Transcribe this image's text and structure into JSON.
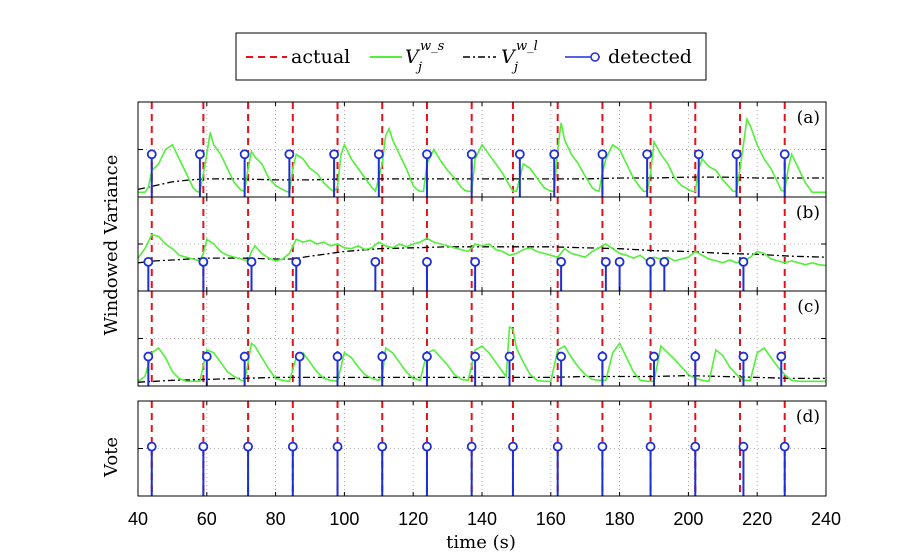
{
  "chart_data": {
    "type": "line",
    "description_title": "",
    "xlabel": "time (s)",
    "ylabel_top": "Windowed Variance",
    "ylabel_bottom": "Vote",
    "xlim": [
      40,
      240
    ],
    "xticks": [
      "40",
      "60",
      "80",
      "100",
      "120",
      "140",
      "160",
      "180",
      "200",
      "220",
      "240"
    ],
    "legend": {
      "actual": "actual",
      "short": "V",
      "short_sub": "j",
      "short_sup": "w_s",
      "long": "V",
      "long_sub": "j",
      "long_sup": "w_l",
      "detected": "detected"
    },
    "actual_times": [
      44,
      59,
      72,
      85,
      98,
      111,
      124,
      137,
      149,
      162,
      175,
      189,
      202,
      215,
      228
    ],
    "panels": [
      {
        "tag": "(a)",
        "ylim": [
          0,
          1
        ],
        "short_variance": {
          "x": [
            40,
            42,
            43,
            44,
            46,
            48,
            50,
            52,
            54,
            56,
            57,
            58,
            59,
            60,
            61,
            62,
            64,
            66,
            68,
            70,
            71,
            72,
            73,
            74,
            76,
            78,
            80,
            82,
            83,
            84,
            85,
            86,
            88,
            90,
            92,
            94,
            96,
            97,
            98,
            99,
            100,
            101,
            102,
            104,
            106,
            108,
            109,
            110,
            111,
            112,
            113,
            114,
            116,
            118,
            120,
            121,
            122,
            123,
            124,
            126,
            128,
            130,
            132,
            134,
            135,
            136,
            137,
            138,
            140,
            142,
            144,
            146,
            148,
            149,
            150,
            151,
            152,
            154,
            156,
            158,
            160,
            161,
            162,
            163,
            164,
            166,
            168,
            170,
            172,
            173,
            174,
            175,
            176,
            178,
            180,
            182,
            184,
            186,
            187,
            188,
            189,
            190,
            192,
            194,
            196,
            198,
            200,
            201,
            202,
            203,
            204,
            206,
            208,
            210,
            212,
            213,
            214,
            215,
            216,
            217,
            218,
            220,
            222,
            224,
            226,
            227,
            228,
            229,
            230,
            232,
            234,
            236,
            238,
            240
          ],
          "y": [
            0.05,
            0.05,
            0.1,
            0.28,
            0.35,
            0.5,
            0.55,
            0.4,
            0.25,
            0.1,
            0.06,
            0.05,
            0.25,
            0.45,
            0.68,
            0.55,
            0.45,
            0.3,
            0.15,
            0.07,
            0.06,
            0.3,
            0.48,
            0.42,
            0.35,
            0.2,
            0.12,
            0.08,
            0.06,
            0.05,
            0.3,
            0.45,
            0.4,
            0.3,
            0.25,
            0.15,
            0.08,
            0.06,
            0.1,
            0.45,
            0.55,
            0.48,
            0.4,
            0.3,
            0.2,
            0.1,
            0.06,
            0.2,
            0.35,
            0.65,
            0.72,
            0.6,
            0.45,
            0.3,
            0.12,
            0.08,
            0.06,
            0.06,
            0.35,
            0.5,
            0.38,
            0.28,
            0.2,
            0.1,
            0.07,
            0.06,
            0.06,
            0.4,
            0.55,
            0.45,
            0.35,
            0.25,
            0.12,
            0.06,
            0.06,
            0.2,
            0.35,
            0.3,
            0.2,
            0.1,
            0.06,
            0.06,
            0.5,
            0.78,
            0.6,
            0.45,
            0.35,
            0.22,
            0.1,
            0.07,
            0.06,
            0.25,
            0.4,
            0.55,
            0.5,
            0.35,
            0.2,
            0.1,
            0.06,
            0.06,
            0.25,
            0.58,
            0.45,
            0.35,
            0.2,
            0.12,
            0.08,
            0.06,
            0.06,
            0.3,
            0.4,
            0.32,
            0.28,
            0.18,
            0.1,
            0.06,
            0.06,
            0.3,
            0.55,
            0.82,
            0.75,
            0.55,
            0.4,
            0.3,
            0.15,
            0.07,
            0.06,
            0.3,
            0.45,
            0.3,
            0.15,
            0.05,
            0.05,
            0.05
          ]
        },
        "long_variance": {
          "x": [
            40,
            45,
            50,
            55,
            60,
            70,
            80,
            90,
            100,
            110,
            120,
            130,
            140,
            150,
            160,
            170,
            180,
            190,
            200,
            210,
            220,
            230,
            240
          ],
          "y": [
            0.08,
            0.12,
            0.16,
            0.18,
            0.19,
            0.19,
            0.18,
            0.18,
            0.19,
            0.19,
            0.19,
            0.19,
            0.19,
            0.19,
            0.19,
            0.19,
            0.2,
            0.2,
            0.21,
            0.21,
            0.2,
            0.2,
            0.2
          ]
        },
        "detected_times": [
          44,
          58,
          71,
          84,
          97,
          110,
          124,
          137,
          151,
          161,
          175,
          188,
          203,
          214,
          228
        ],
        "stem_level": 0.45
      },
      {
        "tag": "(b)",
        "ylim": [
          0,
          1
        ],
        "short_variance": {
          "x": [
            40,
            42,
            44,
            46,
            48,
            50,
            52,
            54,
            56,
            58,
            59,
            60,
            62,
            64,
            66,
            68,
            70,
            72,
            73,
            74,
            76,
            78,
            80,
            82,
            84,
            86,
            88,
            90,
            92,
            94,
            96,
            98,
            100,
            102,
            104,
            106,
            108,
            110,
            112,
            114,
            116,
            118,
            120,
            122,
            124,
            126,
            128,
            130,
            132,
            134,
            136,
            138,
            140,
            142,
            144,
            146,
            148,
            150,
            152,
            154,
            156,
            158,
            160,
            162,
            164,
            166,
            168,
            170,
            172,
            174,
            176,
            178,
            180,
            182,
            184,
            186,
            188,
            190,
            192,
            194,
            196,
            198,
            200,
            202,
            204,
            206,
            208,
            210,
            212,
            214,
            216,
            218,
            220,
            222,
            224,
            226,
            228,
            230,
            232,
            234,
            236,
            238,
            240
          ],
          "y": [
            0.35,
            0.45,
            0.6,
            0.58,
            0.5,
            0.45,
            0.38,
            0.36,
            0.34,
            0.32,
            0.4,
            0.55,
            0.5,
            0.42,
            0.38,
            0.36,
            0.34,
            0.32,
            0.42,
            0.48,
            0.4,
            0.35,
            0.32,
            0.34,
            0.4,
            0.55,
            0.52,
            0.54,
            0.5,
            0.52,
            0.48,
            0.5,
            0.46,
            0.45,
            0.48,
            0.44,
            0.46,
            0.52,
            0.48,
            0.46,
            0.5,
            0.47,
            0.5,
            0.52,
            0.56,
            0.52,
            0.5,
            0.48,
            0.46,
            0.44,
            0.42,
            0.5,
            0.48,
            0.5,
            0.44,
            0.42,
            0.38,
            0.4,
            0.44,
            0.46,
            0.42,
            0.4,
            0.38,
            0.36,
            0.45,
            0.4,
            0.38,
            0.36,
            0.42,
            0.46,
            0.5,
            0.45,
            0.4,
            0.38,
            0.35,
            0.38,
            0.32,
            0.36,
            0.34,
            0.36,
            0.32,
            0.34,
            0.36,
            0.42,
            0.38,
            0.34,
            0.32,
            0.3,
            0.33,
            0.3,
            0.32,
            0.36,
            0.42,
            0.4,
            0.34,
            0.32,
            0.3,
            0.32,
            0.3,
            0.28,
            0.3,
            0.28,
            0.27
          ]
        },
        "long_variance": {
          "x": [
            40,
            45,
            50,
            55,
            60,
            70,
            80,
            85,
            90,
            100,
            110,
            120,
            130,
            140,
            150,
            160,
            170,
            180,
            190,
            200,
            210,
            220,
            230,
            240
          ],
          "y": [
            0.3,
            0.32,
            0.33,
            0.34,
            0.35,
            0.35,
            0.34,
            0.34,
            0.37,
            0.42,
            0.45,
            0.46,
            0.47,
            0.47,
            0.47,
            0.47,
            0.46,
            0.45,
            0.43,
            0.42,
            0.4,
            0.39,
            0.37,
            0.36
          ]
        },
        "detected_times": [
          43,
          59,
          73,
          86,
          109,
          124,
          138,
          163,
          176,
          180,
          189,
          193,
          216
        ],
        "stem_level": 0.31
      },
      {
        "tag": "(c)",
        "ylim": [
          0,
          1
        ],
        "short_variance": {
          "x": [
            40,
            42,
            44,
            46,
            48,
            50,
            52,
            54,
            56,
            58,
            60,
            62,
            64,
            66,
            68,
            70,
            71,
            72,
            73,
            74,
            76,
            78,
            80,
            82,
            84,
            86,
            88,
            90,
            92,
            94,
            96,
            98,
            100,
            102,
            104,
            106,
            108,
            110,
            111,
            112,
            114,
            116,
            118,
            120,
            122,
            124,
            126,
            128,
            130,
            132,
            134,
            136,
            138,
            140,
            142,
            144,
            146,
            147,
            148,
            149,
            150,
            152,
            154,
            156,
            158,
            160,
            162,
            164,
            166,
            168,
            170,
            172,
            174,
            176,
            178,
            180,
            182,
            184,
            186,
            188,
            190,
            192,
            194,
            196,
            198,
            200,
            202,
            204,
            206,
            208,
            210,
            212,
            214,
            216,
            218,
            220,
            222,
            224,
            226,
            228,
            230,
            232,
            234,
            236,
            238,
            240
          ],
          "y": [
            0.05,
            0.1,
            0.35,
            0.4,
            0.3,
            0.15,
            0.08,
            0.05,
            0.05,
            0.05,
            0.38,
            0.35,
            0.25,
            0.15,
            0.1,
            0.06,
            0.05,
            0.25,
            0.45,
            0.42,
            0.3,
            0.18,
            0.08,
            0.06,
            0.05,
            0.3,
            0.35,
            0.25,
            0.15,
            0.08,
            0.06,
            0.05,
            0.35,
            0.3,
            0.2,
            0.12,
            0.08,
            0.06,
            0.1,
            0.4,
            0.35,
            0.25,
            0.15,
            0.08,
            0.06,
            0.35,
            0.38,
            0.3,
            0.22,
            0.12,
            0.07,
            0.06,
            0.38,
            0.42,
            0.35,
            0.25,
            0.15,
            0.1,
            0.62,
            0.6,
            0.4,
            0.25,
            0.12,
            0.06,
            0.05,
            0.05,
            0.38,
            0.42,
            0.3,
            0.2,
            0.12,
            0.07,
            0.06,
            0.06,
            0.35,
            0.45,
            0.3,
            0.15,
            0.06,
            0.05,
            0.05,
            0.42,
            0.35,
            0.28,
            0.2,
            0.12,
            0.08,
            0.06,
            0.05,
            0.38,
            0.32,
            0.2,
            0.12,
            0.06,
            0.06,
            0.35,
            0.4,
            0.3,
            0.2,
            0.12,
            0.06,
            0.05,
            0.05,
            0.05,
            0.05,
            0.05
          ]
        },
        "long_variance": {
          "x": [
            40,
            45,
            50,
            60,
            70,
            80,
            90,
            100,
            110,
            120,
            130,
            140,
            150,
            160,
            170,
            180,
            190,
            200,
            210,
            220,
            230,
            240
          ],
          "y": [
            0.04,
            0.05,
            0.06,
            0.07,
            0.08,
            0.09,
            0.09,
            0.09,
            0.09,
            0.09,
            0.09,
            0.09,
            0.09,
            0.09,
            0.1,
            0.1,
            0.1,
            0.11,
            0.1,
            0.09,
            0.08,
            0.08
          ]
        },
        "detected_times": [
          43,
          60,
          71,
          87,
          98,
          111,
          124,
          138,
          148,
          163,
          175,
          190,
          202,
          216,
          227
        ],
        "stem_level": 0.31
      },
      {
        "tag": "(d)",
        "ylim": [
          0,
          1
        ],
        "detected_times": [
          44,
          59,
          72,
          85,
          98,
          111,
          124,
          137,
          149,
          162,
          175,
          189,
          202,
          216,
          228
        ],
        "stem_level": 0.52
      }
    ]
  },
  "colors": {
    "actual": "#e8101a",
    "short": "#52f03a",
    "long": "#000000",
    "detected": "#1f2fd6",
    "grid": "#9a9a9a"
  }
}
